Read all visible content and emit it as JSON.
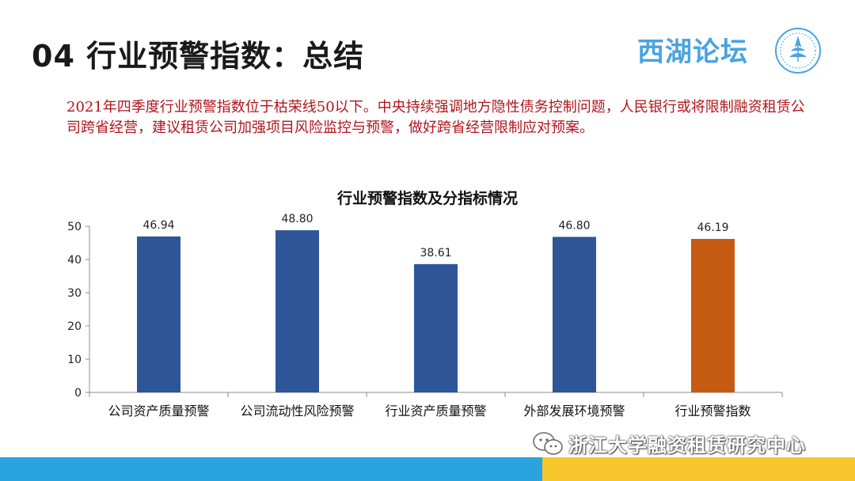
{
  "slide": {
    "title": "04 行业预警指数：总结",
    "logo_text": "西湖论坛",
    "logo_icon": "xihu-forum-emblem",
    "intro": "2021年四季度行业预警指数位于枯荣线50以下。中央持续强调地方隐性债务控制问题，人民银行或将限制融资租赁公司跨省经营，建议租赁公司加强项目风险监控与预警，做好跨省经营限制应对预案。",
    "watermark": "浙江大学融资租赁研究中心",
    "watermark_icon": "wechat-icon"
  },
  "colors": {
    "bar_default": "#2e5597",
    "bar_highlight": "#c55a11",
    "intro_text": "#b0151c",
    "logo_text": "#4aa3df",
    "band_blue": "#2ba3e0",
    "band_yellow": "#f6c62c"
  },
  "chart_data": {
    "type": "bar",
    "title": "行业预警指数及分指标情况",
    "xlabel": "",
    "ylabel": "",
    "categories": [
      "公司资产质量预警",
      "公司流动性风险预警",
      "行业资产质量预警",
      "外部发展环境预警",
      "行业预警指数"
    ],
    "values": [
      46.94,
      48.8,
      38.61,
      46.8,
      46.19
    ],
    "value_labels": [
      "46.94",
      "48.80",
      "38.61",
      "46.80",
      "46.19"
    ],
    "highlight_index": 4,
    "ylim": [
      0,
      50
    ],
    "yticks": [
      0,
      10,
      20,
      30,
      40,
      50
    ],
    "grid": false,
    "legend": "none"
  }
}
